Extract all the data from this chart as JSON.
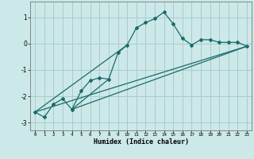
{
  "title": "",
  "xlabel": "Humidex (Indice chaleur)",
  "ylabel": "",
  "background_color": "#cce8e8",
  "grid_color": "#aacccc",
  "line_color": "#1a6b6b",
  "xlim": [
    -0.5,
    23.5
  ],
  "ylim": [
    -3.3,
    1.6
  ],
  "yticks": [
    -3,
    -2,
    -1,
    0,
    1
  ],
  "xticks": [
    0,
    1,
    2,
    3,
    4,
    5,
    6,
    7,
    8,
    9,
    10,
    11,
    12,
    13,
    14,
    15,
    16,
    17,
    18,
    19,
    20,
    21,
    22,
    23
  ],
  "series": [
    [
      0,
      -2.6
    ],
    [
      1,
      -2.8
    ],
    [
      2,
      -2.3
    ],
    [
      3,
      -2.1
    ],
    [
      4,
      -2.5
    ],
    [
      5,
      -1.8
    ],
    [
      6,
      -1.4
    ],
    [
      7,
      -1.3
    ],
    [
      8,
      -1.35
    ],
    [
      9,
      -0.35
    ],
    [
      10,
      -0.05
    ],
    [
      11,
      0.6
    ],
    [
      12,
      0.8
    ],
    [
      13,
      0.95
    ],
    [
      14,
      1.2
    ],
    [
      15,
      0.75
    ],
    [
      16,
      0.2
    ],
    [
      17,
      -0.05
    ],
    [
      18,
      0.15
    ],
    [
      19,
      0.15
    ],
    [
      20,
      0.05
    ],
    [
      21,
      0.05
    ],
    [
      22,
      0.05
    ],
    [
      23,
      -0.1
    ]
  ],
  "line1": [
    [
      0,
      -2.6
    ],
    [
      23,
      -0.1
    ]
  ],
  "line2": [
    [
      4,
      -2.5
    ],
    [
      23,
      -0.1
    ]
  ],
  "line3": [
    [
      0,
      -2.6
    ],
    [
      10,
      -0.05
    ]
  ],
  "line4": [
    [
      4,
      -2.5
    ],
    [
      8,
      -1.35
    ]
  ]
}
